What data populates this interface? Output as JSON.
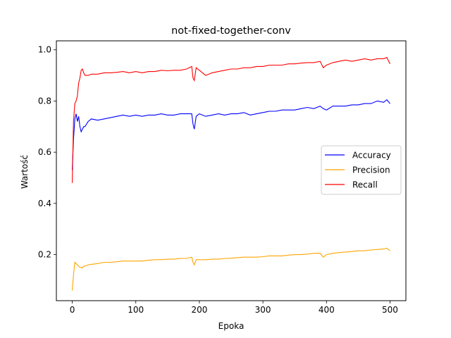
{
  "chart_data": {
    "type": "line",
    "title": "not-fixed-together-conv",
    "xlabel": "Epoka",
    "ylabel": "Wartość",
    "xlim": [
      -25,
      525
    ],
    "ylim": [
      0.02,
      1.035
    ],
    "xticks": [
      0,
      100,
      200,
      300,
      400,
      500
    ],
    "xtick_labels": [
      "0",
      "100",
      "200",
      "300",
      "400",
      "500"
    ],
    "yticks": [
      0.2,
      0.4,
      0.6,
      0.8,
      1.0
    ],
    "ytick_labels": [
      "0.2",
      "0.4",
      "0.6",
      "0.8",
      "1.0"
    ],
    "grid": false,
    "legend_position": "center-right",
    "series": [
      {
        "name": "Accuracy",
        "color": "#0000ff",
        "x": [
          0,
          2,
          4,
          6,
          8,
          10,
          12,
          14,
          16,
          18,
          20,
          25,
          30,
          40,
          50,
          60,
          70,
          80,
          90,
          100,
          110,
          120,
          130,
          140,
          150,
          160,
          170,
          180,
          188,
          190,
          192,
          195,
          200,
          210,
          220,
          230,
          240,
          250,
          260,
          270,
          280,
          290,
          300,
          310,
          320,
          330,
          340,
          350,
          360,
          370,
          380,
          390,
          395,
          400,
          410,
          420,
          430,
          440,
          450,
          460,
          470,
          480,
          490,
          495,
          500
        ],
        "y": [
          0.53,
          0.65,
          0.73,
          0.75,
          0.72,
          0.74,
          0.7,
          0.68,
          0.69,
          0.7,
          0.7,
          0.72,
          0.73,
          0.725,
          0.73,
          0.735,
          0.74,
          0.745,
          0.74,
          0.745,
          0.74,
          0.745,
          0.745,
          0.75,
          0.745,
          0.745,
          0.75,
          0.75,
          0.75,
          0.71,
          0.69,
          0.74,
          0.75,
          0.74,
          0.745,
          0.75,
          0.745,
          0.75,
          0.75,
          0.755,
          0.745,
          0.75,
          0.755,
          0.76,
          0.76,
          0.765,
          0.765,
          0.765,
          0.77,
          0.775,
          0.77,
          0.78,
          0.77,
          0.765,
          0.78,
          0.78,
          0.78,
          0.785,
          0.785,
          0.79,
          0.79,
          0.8,
          0.795,
          0.805,
          0.79
        ]
      },
      {
        "name": "Precision",
        "color": "#ffa500",
        "x": [
          0,
          2,
          4,
          6,
          8,
          10,
          12,
          14,
          16,
          18,
          20,
          25,
          30,
          40,
          50,
          60,
          70,
          80,
          90,
          100,
          110,
          120,
          130,
          140,
          150,
          160,
          170,
          180,
          188,
          190,
          192,
          195,
          200,
          210,
          220,
          230,
          240,
          250,
          260,
          270,
          280,
          290,
          300,
          310,
          320,
          330,
          340,
          350,
          360,
          370,
          380,
          390,
          395,
          400,
          410,
          420,
          430,
          440,
          450,
          460,
          470,
          480,
          490,
          495,
          500
        ],
        "y": [
          0.06,
          0.12,
          0.17,
          0.165,
          0.16,
          0.155,
          0.15,
          0.15,
          0.148,
          0.155,
          0.155,
          0.16,
          0.162,
          0.165,
          0.17,
          0.17,
          0.172,
          0.175,
          0.175,
          0.175,
          0.175,
          0.178,
          0.18,
          0.18,
          0.182,
          0.182,
          0.185,
          0.185,
          0.19,
          0.17,
          0.16,
          0.18,
          0.18,
          0.18,
          0.182,
          0.182,
          0.185,
          0.186,
          0.188,
          0.19,
          0.19,
          0.19,
          0.192,
          0.195,
          0.195,
          0.195,
          0.198,
          0.2,
          0.2,
          0.202,
          0.205,
          0.205,
          0.19,
          0.2,
          0.205,
          0.208,
          0.21,
          0.212,
          0.215,
          0.215,
          0.218,
          0.22,
          0.222,
          0.225,
          0.215
        ]
      },
      {
        "name": "Recall",
        "color": "#ff0000",
        "x": [
          0,
          2,
          4,
          6,
          8,
          10,
          12,
          14,
          16,
          18,
          20,
          25,
          30,
          40,
          50,
          60,
          70,
          80,
          90,
          100,
          110,
          120,
          130,
          140,
          150,
          160,
          170,
          180,
          188,
          190,
          192,
          195,
          200,
          210,
          220,
          230,
          240,
          250,
          260,
          270,
          280,
          290,
          300,
          310,
          320,
          330,
          340,
          350,
          360,
          370,
          380,
          390,
          395,
          400,
          410,
          420,
          430,
          440,
          450,
          460,
          470,
          480,
          490,
          495,
          500
        ],
        "y": [
          0.48,
          0.72,
          0.79,
          0.8,
          0.82,
          0.87,
          0.89,
          0.92,
          0.925,
          0.91,
          0.9,
          0.9,
          0.905,
          0.905,
          0.91,
          0.91,
          0.912,
          0.915,
          0.91,
          0.915,
          0.91,
          0.915,
          0.915,
          0.92,
          0.918,
          0.92,
          0.92,
          0.925,
          0.935,
          0.89,
          0.88,
          0.93,
          0.92,
          0.9,
          0.91,
          0.915,
          0.92,
          0.925,
          0.925,
          0.93,
          0.93,
          0.935,
          0.935,
          0.94,
          0.94,
          0.94,
          0.945,
          0.945,
          0.948,
          0.95,
          0.95,
          0.955,
          0.93,
          0.94,
          0.95,
          0.955,
          0.96,
          0.955,
          0.96,
          0.965,
          0.96,
          0.965,
          0.965,
          0.97,
          0.945
        ]
      }
    ]
  }
}
